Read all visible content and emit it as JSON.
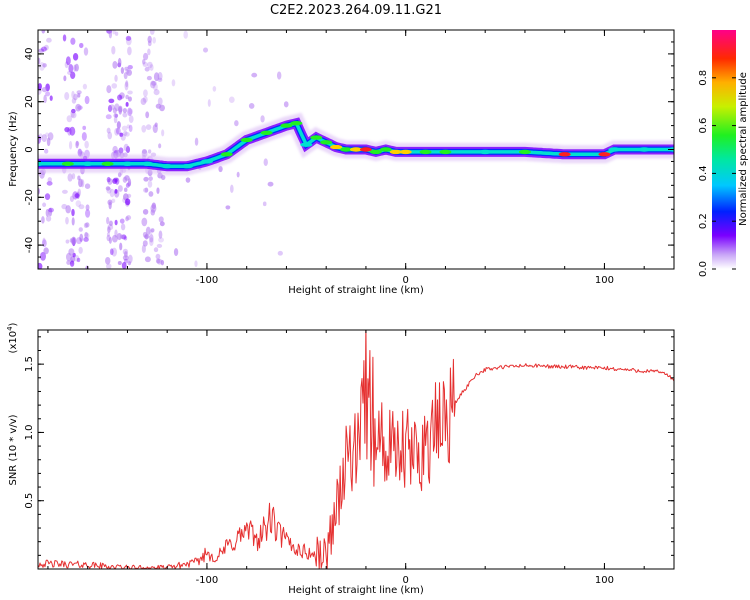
{
  "title": "C2E2.2023.264.09.11.G21",
  "colors": {
    "axis": "#000000",
    "snr_line": "#e53030",
    "track_outer": "#d8b8f4",
    "track_mid": "#7a00ff",
    "track_core": "#00e0d0",
    "track_peak": "#ff2020",
    "speckle": "#b37bf2"
  },
  "chart_data": [
    {
      "type": "heatmap",
      "xlabel": "Height of straight line (km)",
      "ylabel": "Frequency (Hz)",
      "xlim": [
        -185,
        135
      ],
      "ylim": [
        -50,
        50
      ],
      "x_ticks": [
        -100,
        0,
        100
      ],
      "x_tick_labels": [
        "-100",
        "0",
        "100"
      ],
      "y_ticks": [
        -40,
        -20,
        0,
        20,
        40
      ],
      "y_tick_labels": [
        "-40",
        "-20",
        "0",
        "20",
        "40"
      ],
      "grid": false,
      "colorbar": {
        "label": "Normalized spectral amplitude",
        "range": [
          0,
          1
        ],
        "ticks": [
          0,
          0.2,
          0.4,
          0.6,
          0.8
        ],
        "tick_labels": [
          "0.0",
          "0.2",
          "0.4",
          "0.6",
          "0.8"
        ],
        "colormap": "rainbow"
      },
      "ridge": {
        "x": [
          -185,
          -170,
          -160,
          -150,
          -140,
          -130,
          -120,
          -110,
          -100,
          -90,
          -80,
          -70,
          -60,
          -55,
          -50,
          -45,
          -40,
          -35,
          -30,
          -25,
          -20,
          -15,
          -10,
          -5,
          0,
          10,
          20,
          40,
          60,
          80,
          100,
          105,
          120,
          135
        ],
        "y": [
          -6,
          -6,
          -6,
          -6,
          -6,
          -6,
          -7,
          -7,
          -5,
          -2,
          4,
          7,
          10,
          11,
          2,
          5,
          3,
          1,
          0,
          0,
          0,
          -1,
          0,
          -1,
          -1,
          -1,
          -1,
          -1,
          -1,
          -2,
          -2,
          0,
          0,
          0
        ],
        "amplitude": [
          0.5,
          0.6,
          0.5,
          0.6,
          0.5,
          0.5,
          0.4,
          0.4,
          0.5,
          0.6,
          0.6,
          0.6,
          0.6,
          0.7,
          0.4,
          0.6,
          0.6,
          0.8,
          0.7,
          0.8,
          0.9,
          0.6,
          0.7,
          0.8,
          0.8,
          0.6,
          0.6,
          0.5,
          0.6,
          1.0,
          0.9,
          0.5,
          0.5,
          0.5
        ]
      }
    },
    {
      "type": "line",
      "xlabel": "Height of straight line (km)",
      "ylabel": "SNR (10 * v/v)",
      "y_exponent_label": "(x10",
      "y_exponent": "4",
      "y_exponent_close": ")",
      "xlim": [
        -185,
        135
      ],
      "ylim": [
        0,
        1.75
      ],
      "x_ticks": [
        -100,
        0,
        100
      ],
      "x_tick_labels": [
        "-100",
        "0",
        "100"
      ],
      "y_ticks": [
        0.5,
        1.0,
        1.5
      ],
      "y_tick_labels": [
        "0.5",
        "1.0",
        "1.5"
      ],
      "grid": false,
      "series": [
        {
          "x": [
            -185,
            -160,
            -140,
            -120,
            -105,
            -100,
            -95,
            -90,
            -85,
            -80,
            -75,
            -70,
            -68,
            -65,
            -60,
            -55,
            -50,
            -45,
            -40,
            -37,
            -35,
            -32,
            -30,
            -28,
            -25,
            -22,
            -20,
            -18,
            -15,
            -12,
            -10,
            -5,
            0,
            5,
            10,
            15,
            20,
            25,
            30,
            35,
            40,
            50,
            60,
            80,
            100,
            110,
            120,
            130,
            135
          ],
          "y": [
            0.04,
            0.03,
            0.01,
            0.01,
            0.05,
            0.12,
            0.08,
            0.16,
            0.22,
            0.28,
            0.22,
            0.3,
            0.38,
            0.28,
            0.2,
            0.15,
            0.12,
            0.1,
            0.1,
            0.32,
            0.45,
            0.65,
            0.75,
            0.9,
            0.8,
            1.05,
            1.2,
            1.0,
            0.9,
            0.95,
            0.85,
            0.82,
            0.85,
            0.82,
            0.92,
            1.0,
            1.1,
            1.22,
            1.32,
            1.42,
            1.46,
            1.48,
            1.49,
            1.48,
            1.47,
            1.46,
            1.45,
            1.44,
            1.38
          ]
        }
      ]
    }
  ]
}
